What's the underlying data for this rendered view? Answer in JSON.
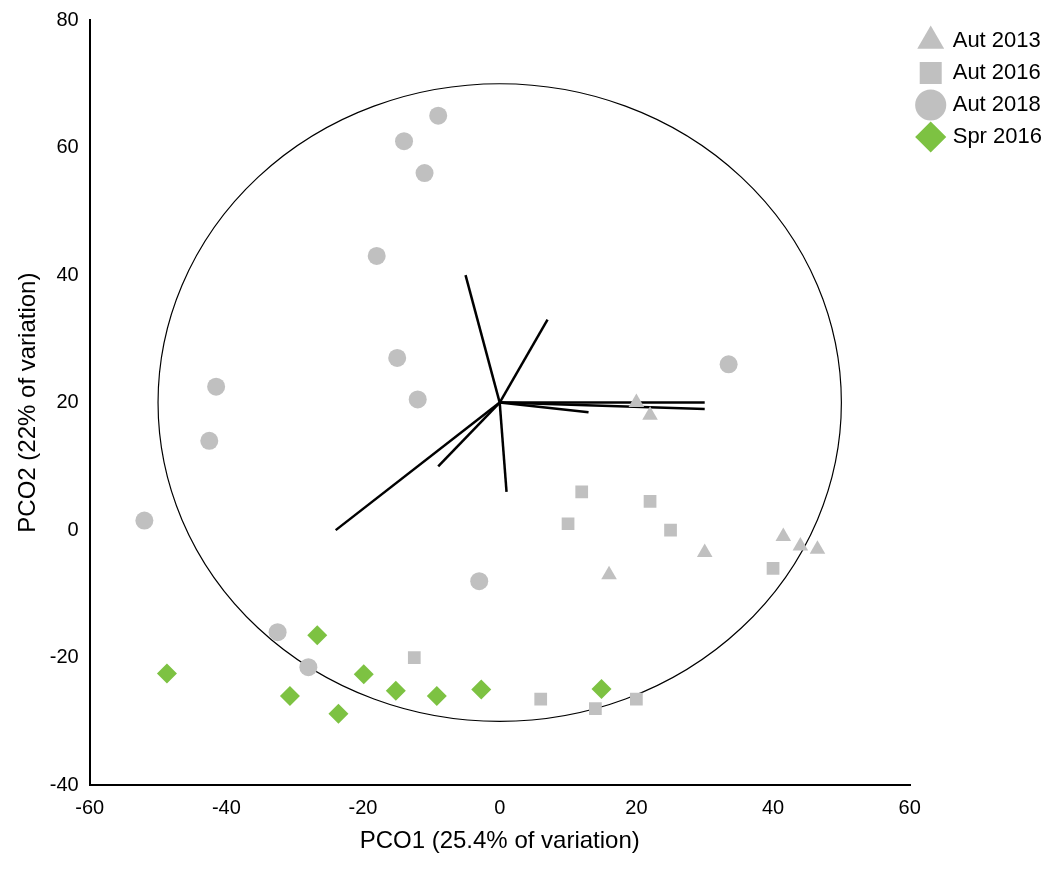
{
  "chart_data": {
    "type": "scatter",
    "x_label": "PCO1 (25.4% of variation)",
    "y_label": "PCO2 (22% of variation)",
    "xlim": [
      -60,
      60
    ],
    "xticks": [
      -60,
      -40,
      -20,
      0,
      20,
      40,
      60
    ],
    "ylim": [
      -40,
      80
    ],
    "yticks": [
      -40,
      -20,
      0,
      20,
      40,
      60,
      80
    ],
    "grid": false,
    "legend": "right",
    "series": [
      {
        "name": "Aut 2013",
        "color": "#c0c0c0",
        "marker": "triangle",
        "x": [
          20,
          22,
          16,
          30,
          41.5,
          44,
          46.5
        ],
        "y": [
          20,
          18,
          -7,
          -3.5,
          -1,
          -2.5,
          -3
        ]
      },
      {
        "name": "Aut 2016",
        "color": "#c0c0c0",
        "marker": "square",
        "x": [
          12,
          10,
          22,
          25,
          40,
          -12.5,
          6,
          14,
          20
        ],
        "y": [
          6,
          1,
          4.5,
          0,
          -6,
          -20,
          -26.5,
          -28,
          -26.5
        ]
      },
      {
        "name": "Aut 2018",
        "color": "#c0c0c0",
        "marker": "circle",
        "x": [
          -9,
          -14,
          -11,
          -18,
          -15,
          -12,
          -41.5,
          -42.5,
          -52,
          -3,
          -32.5,
          -28,
          33.5
        ],
        "y": [
          65,
          61,
          56,
          43,
          27,
          20.5,
          22.5,
          14,
          1.5,
          -8,
          -16,
          -21.5,
          26
        ]
      },
      {
        "name": "Spr 2016",
        "color": "#7dc242",
        "marker": "diamond",
        "x": [
          -48.7,
          -26.7,
          -30.7,
          -23.6,
          -19.9,
          -15.2,
          -9.2,
          -2.7,
          14.9
        ],
        "y": [
          -22.5,
          -16.5,
          -26,
          -28.8,
          -22.6,
          -25.2,
          -26,
          -25,
          -24.9
        ]
      }
    ],
    "vectors": [
      {
        "x": [
          0,
          -5
        ],
        "y": [
          20,
          40
        ]
      },
      {
        "x": [
          0,
          7
        ],
        "y": [
          20,
          33
        ]
      },
      {
        "x": [
          0,
          30
        ],
        "y": [
          20,
          20
        ]
      },
      {
        "x": [
          0,
          30
        ],
        "y": [
          20,
          19
        ]
      },
      {
        "x": [
          0,
          13
        ],
        "y": [
          20,
          18.5
        ]
      },
      {
        "x": [
          0,
          1
        ],
        "y": [
          20,
          6
        ]
      },
      {
        "x": [
          0,
          -9
        ],
        "y": [
          20,
          10
        ]
      },
      {
        "x": [
          0,
          -24
        ],
        "y": [
          20,
          0
        ]
      }
    ],
    "circle": {
      "center": [
        0,
        20
      ],
      "radius": 50
    }
  }
}
